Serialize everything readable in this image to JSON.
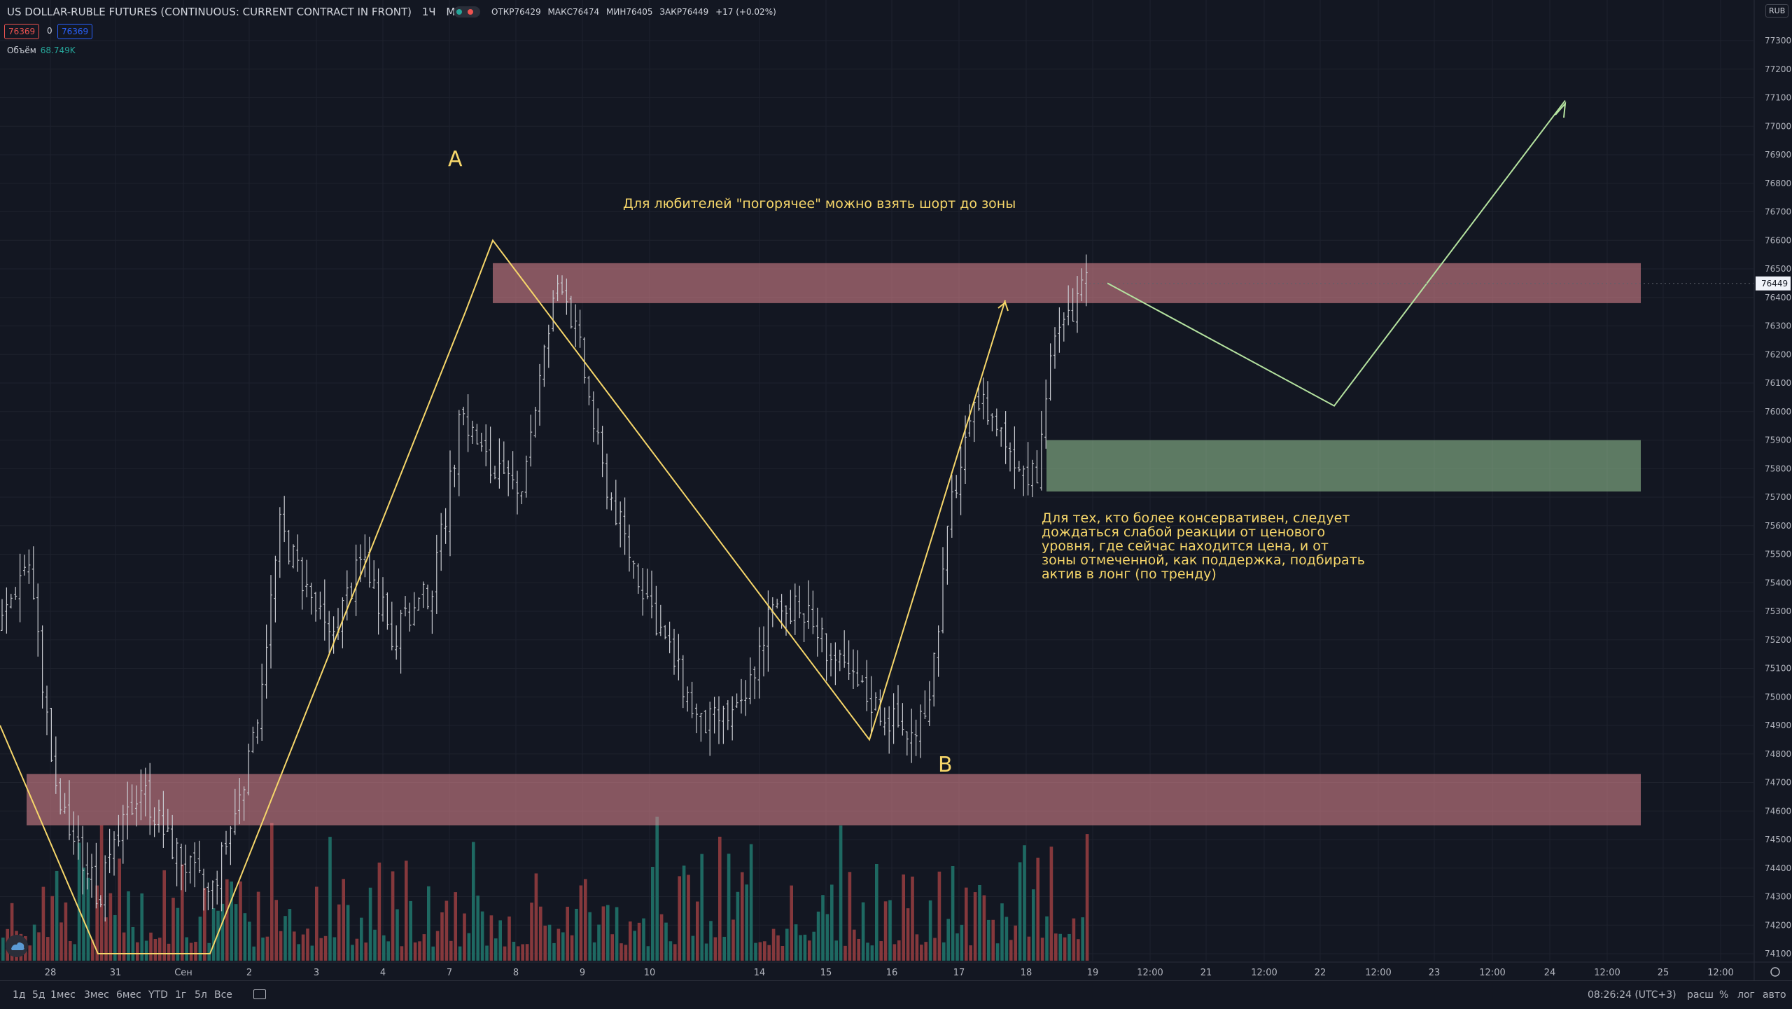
{
  "header": {
    "symbol": "US DOLLAR-RUBLE FUTURES (CONTINUOUS: CURRENT CONTRACT IN FRONT)",
    "interval": "1Ч",
    "exchange": "MOEX",
    "open_label": "ОТКР",
    "open": "76429",
    "high_label": "МАКС",
    "high": "76474",
    "low_label": "МИН",
    "low": "76405",
    "close_label": "ЗАКР",
    "close": "76449",
    "change": "+17 (+0.02%)",
    "bid": "76369",
    "spread": "0",
    "ask": "76369",
    "volume_label": "Объём",
    "volume": "68.749K",
    "currency": "RUB"
  },
  "colors": {
    "background": "#131722",
    "up": "#26a69a",
    "down": "#ef5350",
    "candle": "#c8cad0",
    "drawing": "#f7d76a",
    "resistance_zone": "#e58a93",
    "support_zone": "#8fbc8f",
    "projection": "#b5e3a0"
  },
  "annotations": {
    "label_a": "A",
    "label_b": "B",
    "note_short": "Для любителей \"погорячее\" можно взять шорт до зоны",
    "note_long": [
      "Для тех, кто более консервативен, следует",
      "дождаться слабой реакции от ценового",
      "уровня, где сейчас находится цена, и от",
      "зоны отмеченной, как поддержка, подбирать",
      "актив в лонг (по тренду)"
    ]
  },
  "toolbar": {
    "timeframes": [
      "1д",
      "5д",
      "1мес",
      "3мес",
      "6мес",
      "YTD",
      "1г",
      "5л",
      "Все"
    ],
    "clock": "08:26:24 (UTC+3)",
    "right_buttons": [
      "расш",
      "%",
      "лог",
      "авто"
    ]
  },
  "chart_data": {
    "type": "candlestick",
    "y_ticks": [
      74100,
      74200,
      74300,
      74400,
      74500,
      74600,
      74700,
      74800,
      74900,
      75000,
      75100,
      75200,
      75300,
      75400,
      75500,
      75600,
      75700,
      75800,
      75900,
      76000,
      76100,
      76200,
      76300,
      76400,
      76500,
      76600,
      76700,
      76800,
      76900,
      77000,
      77100,
      77200,
      77300
    ],
    "ylim": [
      74050,
      77350
    ],
    "last_price": "76449",
    "x_ticks": [
      "28",
      "31",
      "Сен",
      "2",
      "3",
      "4",
      "7",
      "8",
      "9",
      "10",
      "14",
      "15",
      "16",
      "17",
      "18",
      "19",
      "12:00",
      "21",
      "12:00",
      "22",
      "12:00",
      "23",
      "12:00",
      "24",
      "12:00",
      "25",
      "12:00"
    ],
    "swing_points": [
      {
        "label": "A",
        "price": 76600
      },
      {
        "label": "B",
        "price": 74850
      }
    ],
    "zones": [
      {
        "type": "resistance",
        "low": 76380,
        "high": 76520
      },
      {
        "type": "support",
        "low": 75720,
        "high": 75900
      },
      {
        "type": "support",
        "low": 74550,
        "high": 74730
      }
    ],
    "projection_path": [
      76450,
      76020,
      77090
    ],
    "last_candle_close": 76449
  }
}
